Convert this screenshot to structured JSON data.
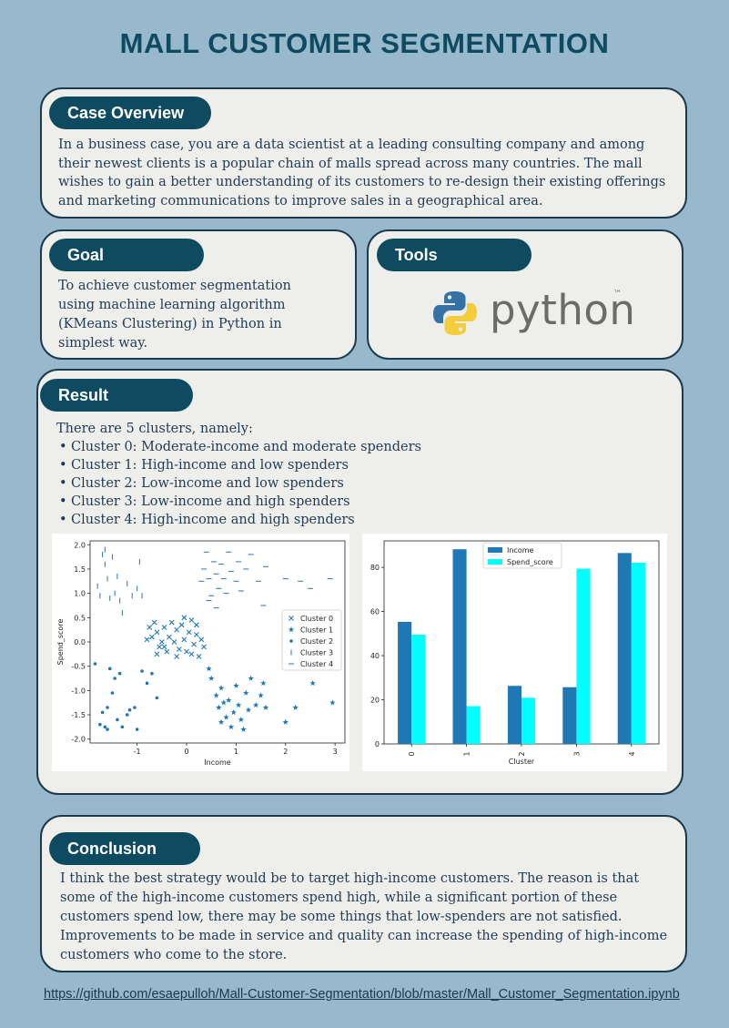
{
  "title": "MALL CUSTOMER SEGMENTATION",
  "case_overview": {
    "heading": "Case Overview",
    "text": "In a business case, you are a data scientist at a leading consulting company and among their newest clients is a popular chain of malls spread across many countries. The mall wishes to gain a better understanding of its customers to re-design their existing offerings and marketing communications to improve sales in a geographical area."
  },
  "goal": {
    "heading": "Goal",
    "text": "To achieve customer segmentation using machine learning algorithm (KMeans Clustering) in Python in simplest way."
  },
  "tools": {
    "heading": "Tools",
    "logo_text": "python",
    "logo_tm": "™",
    "logo_icon": "python-logo-icon"
  },
  "result": {
    "heading": "Result",
    "intro": "There are 5 clusters, namely:",
    "items": [
      "Cluster 0: Moderate-income and moderate spenders",
      "Cluster 1: High-income and low spenders",
      "Cluster 2: Low-income and low spenders",
      "Cluster 3: Low-income and high spenders",
      "Cluster 4: High-income and high spenders"
    ]
  },
  "conclusion": {
    "heading": "Conclusion",
    "text": "I think the best strategy would be to target high-income customers. The reason is that some of the high-income customers spend high, while a significant portion of these customers spend low, there may be some things that low-spenders are not satisfied. Improvements to be made in service and quality can increase the spending of high-income customers who come to the store."
  },
  "link": "https://github.com/esaepulloh/Mall-Customer-Segmentation/blob/master/Mall_Customer_Segmentation.ipynb",
  "chart_data": [
    {
      "type": "scatter",
      "xlabel": "Income",
      "ylabel": "Spend_score",
      "xlim": [
        -1.95,
        3.2
      ],
      "ylim": [
        -2.08,
        2.08
      ],
      "xticks": [
        -1,
        0,
        1,
        2,
        3
      ],
      "yticks": [
        -2.0,
        -1.5,
        -1.0,
        -0.5,
        0.0,
        0.5,
        1.0,
        1.5,
        2.0
      ],
      "legend_position": "right",
      "color": "#1f77b4",
      "series": [
        {
          "name": "Cluster 0",
          "marker": "x",
          "points": [
            [
              -0.75,
              0.3
            ],
            [
              -0.7,
              0.1
            ],
            [
              -0.65,
              0.4
            ],
            [
              -0.6,
              0.2
            ],
            [
              -0.55,
              -0.1
            ],
            [
              -0.5,
              0.0
            ],
            [
              -0.45,
              0.3
            ],
            [
              -0.4,
              -0.2
            ],
            [
              -0.35,
              0.1
            ],
            [
              -0.3,
              0.4
            ],
            [
              -0.25,
              0.0
            ],
            [
              -0.2,
              0.25
            ],
            [
              -0.15,
              -0.15
            ],
            [
              -0.1,
              0.35
            ],
            [
              -0.05,
              0.05
            ],
            [
              0.0,
              -0.2
            ],
            [
              0.05,
              0.2
            ],
            [
              0.1,
              0.45
            ],
            [
              0.15,
              -0.05
            ],
            [
              0.2,
              0.15
            ],
            [
              0.25,
              -0.3
            ],
            [
              0.3,
              0.05
            ],
            [
              -0.6,
              -0.25
            ],
            [
              -0.45,
              -0.1
            ],
            [
              -0.8,
              0.05
            ],
            [
              -0.2,
              -0.3
            ],
            [
              0.1,
              -0.25
            ],
            [
              0.35,
              -0.1
            ],
            [
              -0.05,
              0.5
            ],
            [
              0.2,
              0.35
            ]
          ]
        },
        {
          "name": "Cluster 1",
          "marker": "*",
          "points": [
            [
              0.45,
              -0.55
            ],
            [
              0.5,
              -0.75
            ],
            [
              0.6,
              -1.1
            ],
            [
              0.65,
              -1.35
            ],
            [
              0.7,
              -0.95
            ],
            [
              0.75,
              -1.25
            ],
            [
              0.8,
              -1.55
            ],
            [
              0.85,
              -1.2
            ],
            [
              0.9,
              -1.75
            ],
            [
              0.95,
              -1.45
            ],
            [
              1.0,
              -0.9
            ],
            [
              1.05,
              -1.3
            ],
            [
              1.1,
              -1.6
            ],
            [
              1.2,
              -1.05
            ],
            [
              1.25,
              -1.4
            ],
            [
              1.3,
              -0.75
            ],
            [
              1.4,
              -1.3
            ],
            [
              1.5,
              -1.1
            ],
            [
              1.55,
              -0.85
            ],
            [
              1.6,
              -1.35
            ],
            [
              2.0,
              -1.65
            ],
            [
              2.2,
              -1.35
            ],
            [
              2.55,
              -0.85
            ],
            [
              2.95,
              -1.25
            ],
            [
              0.7,
              -1.65
            ],
            [
              1.15,
              -1.8
            ]
          ]
        },
        {
          "name": "Cluster 2",
          "marker": "dot",
          "points": [
            [
              -1.75,
              -1.7
            ],
            [
              -1.7,
              -1.45
            ],
            [
              -1.65,
              -1.75
            ],
            [
              -1.6,
              -1.35
            ],
            [
              -1.55,
              -0.55
            ],
            [
              -1.5,
              -1.05
            ],
            [
              -1.45,
              -0.75
            ],
            [
              -1.35,
              -0.65
            ],
            [
              -1.3,
              -1.75
            ],
            [
              -1.2,
              -1.5
            ],
            [
              -1.15,
              -1.4
            ],
            [
              -1.05,
              -1.35
            ],
            [
              -1.0,
              -1.8
            ],
            [
              -0.9,
              -0.6
            ],
            [
              -0.8,
              -0.85
            ],
            [
              -0.7,
              -0.65
            ],
            [
              -0.6,
              -1.15
            ],
            [
              -1.85,
              -0.45
            ],
            [
              -1.6,
              -1.8
            ],
            [
              -1.4,
              -1.6
            ]
          ]
        },
        {
          "name": "Cluster 3",
          "marker": "|",
          "points": [
            [
              -1.8,
              1.15
            ],
            [
              -1.75,
              0.95
            ],
            [
              -1.7,
              1.8
            ],
            [
              -1.65,
              1.6
            ],
            [
              -1.6,
              1.3
            ],
            [
              -1.55,
              0.9
            ],
            [
              -1.5,
              1.75
            ],
            [
              -1.45,
              1.0
            ],
            [
              -1.4,
              1.35
            ],
            [
              -1.35,
              0.85
            ],
            [
              -1.3,
              0.6
            ],
            [
              -1.2,
              1.2
            ],
            [
              -1.1,
              0.95
            ],
            [
              -1.0,
              1.1
            ],
            [
              -0.95,
              1.65
            ],
            [
              -0.9,
              0.95
            ],
            [
              -1.65,
              1.9
            ]
          ]
        },
        {
          "name": "Cluster 4",
          "marker": "_",
          "points": [
            [
              0.3,
              1.25
            ],
            [
              0.35,
              1.5
            ],
            [
              0.4,
              1.85
            ],
            [
              0.45,
              1.3
            ],
            [
              0.5,
              0.95
            ],
            [
              0.55,
              1.65
            ],
            [
              0.6,
              1.4
            ],
            [
              0.65,
              1.1
            ],
            [
              0.7,
              1.6
            ],
            [
              0.75,
              1.3
            ],
            [
              0.8,
              1.0
            ],
            [
              0.85,
              1.85
            ],
            [
              0.9,
              1.45
            ],
            [
              1.0,
              1.25
            ],
            [
              1.05,
              1.65
            ],
            [
              1.1,
              1.05
            ],
            [
              1.2,
              1.5
            ],
            [
              1.3,
              1.8
            ],
            [
              1.45,
              1.25
            ],
            [
              1.55,
              0.75
            ],
            [
              1.6,
              1.55
            ],
            [
              2.0,
              1.3
            ],
            [
              2.3,
              1.25
            ],
            [
              2.5,
              1.1
            ],
            [
              2.9,
              1.3
            ],
            [
              0.45,
              0.85
            ],
            [
              0.6,
              0.7
            ]
          ]
        }
      ]
    },
    {
      "type": "bar",
      "xlabel": "Cluster",
      "ylabel": "",
      "categories": [
        "0",
        "1",
        "2",
        "3",
        "4"
      ],
      "ylim": [
        0,
        92
      ],
      "yticks": [
        0,
        20,
        40,
        60,
        80
      ],
      "legend_position": "top-center",
      "series": [
        {
          "name": "Income",
          "color": "#1f77b4",
          "values": [
            55.3,
            88.2,
            26.3,
            25.7,
            86.5
          ]
        },
        {
          "name": "Spend_score",
          "color": "#00ffff",
          "values": [
            49.5,
            17.1,
            20.9,
            79.4,
            82.1
          ]
        }
      ]
    }
  ]
}
